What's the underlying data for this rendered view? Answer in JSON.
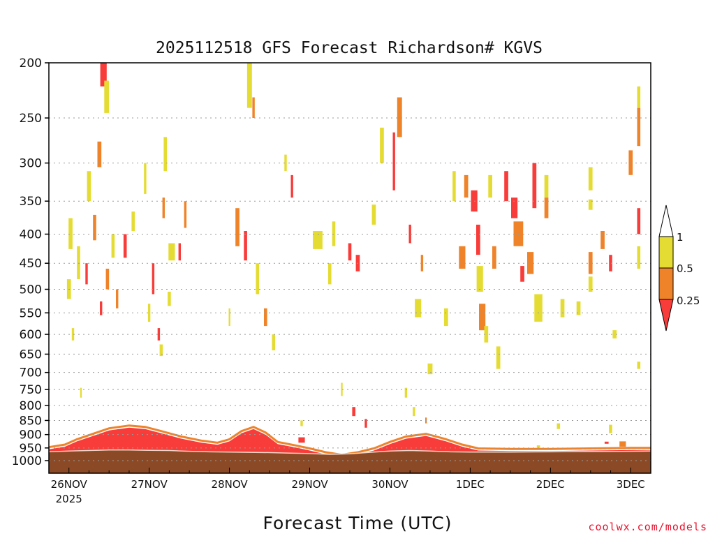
{
  "chart_data": {
    "type": "heatmap",
    "title": "2025112518 GFS Forecast Richardson# KGVS",
    "xlabel": "Forecast Time (UTC)",
    "ylabel": "",
    "y_scale": "log-pressure (inverted)",
    "ylim": [
      1000,
      200
    ],
    "y_ticks": [
      200,
      250,
      300,
      350,
      400,
      450,
      500,
      550,
      600,
      650,
      700,
      750,
      800,
      850,
      900,
      950,
      1000
    ],
    "x_ticks": [
      {
        "label": "26NOV",
        "sub": "2025",
        "day": 26
      },
      {
        "label": "27NOV",
        "sub": "",
        "day": 27
      },
      {
        "label": "28NOV",
        "sub": "",
        "day": 28
      },
      {
        "label": "29NOV",
        "sub": "",
        "day": 29
      },
      {
        "label": "30NOV",
        "sub": "",
        "day": 30
      },
      {
        "label": "1DEC",
        "sub": "",
        "day": 31
      },
      {
        "label": "2DEC",
        "sub": "",
        "day": 32
      },
      {
        "label": "3DEC",
        "sub": "",
        "day": 33
      }
    ],
    "xlim_days": [
      25.75,
      33.25
    ],
    "grid": true,
    "legend": {
      "placement": "right",
      "thresholds": [
        "1",
        "0.5",
        "0.25"
      ],
      "bins": [
        {
          "range": "0.5-1",
          "color": "#e5dc33"
        },
        {
          "range": "0.25-0.5",
          "color": "#ef8329"
        },
        {
          "range": "<0.25",
          "color": "#f83c3a"
        }
      ]
    },
    "colors": {
      "yellow": "#e5dc33",
      "orange": "#ef8329",
      "red": "#f83c3a",
      "ground": "#8b4a25",
      "surface_line": "#f2d6c8"
    },
    "surface_pressure": [
      [
        25.75,
        965
      ],
      [
        26.0,
        962
      ],
      [
        26.25,
        960
      ],
      [
        26.5,
        958
      ],
      [
        26.75,
        958
      ],
      [
        27.0,
        959
      ],
      [
        27.25,
        960
      ],
      [
        27.5,
        963
      ],
      [
        27.75,
        965
      ],
      [
        28.0,
        966
      ],
      [
        28.25,
        967
      ],
      [
        28.5,
        968
      ],
      [
        28.75,
        970
      ],
      [
        29.0,
        972
      ],
      [
        29.25,
        975
      ],
      [
        29.5,
        973
      ],
      [
        29.75,
        967
      ],
      [
        30.0,
        962
      ],
      [
        30.25,
        960
      ],
      [
        30.5,
        962
      ],
      [
        30.75,
        965
      ],
      [
        31.0,
        966
      ],
      [
        31.5,
        966
      ],
      [
        32.0,
        965
      ],
      [
        32.5,
        964
      ],
      [
        33.0,
        963
      ],
      [
        33.25,
        962
      ]
    ],
    "boundary_layer_top": [
      [
        25.75,
        955
      ],
      [
        25.95,
        945
      ],
      [
        26.1,
        925
      ],
      [
        26.3,
        905
      ],
      [
        26.5,
        885
      ],
      [
        26.75,
        875
      ],
      [
        26.95,
        880
      ],
      [
        27.15,
        895
      ],
      [
        27.4,
        915
      ],
      [
        27.65,
        930
      ],
      [
        27.85,
        938
      ],
      [
        28.0,
        925
      ],
      [
        28.15,
        895
      ],
      [
        28.3,
        880
      ],
      [
        28.45,
        900
      ],
      [
        28.6,
        935
      ],
      [
        28.85,
        950
      ],
      [
        29.0,
        960
      ],
      [
        29.2,
        975
      ],
      [
        29.4,
        985
      ],
      [
        29.6,
        975
      ],
      [
        29.8,
        960
      ],
      [
        30.0,
        935
      ],
      [
        30.2,
        915
      ],
      [
        30.45,
        905
      ],
      [
        30.7,
        925
      ],
      [
        30.9,
        945
      ],
      [
        31.1,
        960
      ],
      [
        31.5,
        962
      ],
      [
        32.0,
        962
      ],
      [
        32.5,
        960
      ],
      [
        33.0,
        958
      ],
      [
        33.25,
        958
      ]
    ],
    "cells": [
      {
        "t": 26.43,
        "p": 210,
        "c": "red",
        "w": 0.08,
        "dp": 20
      },
      {
        "t": 26.47,
        "p": 230,
        "c": "yellow",
        "w": 0.06,
        "dp": 30
      },
      {
        "t": 26.38,
        "p": 290,
        "c": "orange",
        "w": 0.05,
        "dp": 30
      },
      {
        "t": 26.25,
        "p": 330,
        "c": "yellow",
        "w": 0.05,
        "dp": 40
      },
      {
        "t": 26.32,
        "p": 390,
        "c": "orange",
        "w": 0.04,
        "dp": 40
      },
      {
        "t": 26.02,
        "p": 400,
        "c": "yellow",
        "w": 0.05,
        "dp": 50
      },
      {
        "t": 26.12,
        "p": 450,
        "c": "yellow",
        "w": 0.04,
        "dp": 60
      },
      {
        "t": 26.22,
        "p": 470,
        "c": "red",
        "w": 0.03,
        "dp": 40
      },
      {
        "t": 26.4,
        "p": 540,
        "c": "red",
        "w": 0.03,
        "dp": 30
      },
      {
        "t": 26.48,
        "p": 480,
        "c": "orange",
        "w": 0.04,
        "dp": 40
      },
      {
        "t": 26.55,
        "p": 420,
        "c": "yellow",
        "w": 0.04,
        "dp": 40
      },
      {
        "t": 26.7,
        "p": 420,
        "c": "red",
        "w": 0.04,
        "dp": 40
      },
      {
        "t": 26.8,
        "p": 380,
        "c": "yellow",
        "w": 0.04,
        "dp": 30
      },
      {
        "t": 26.95,
        "p": 320,
        "c": "yellow",
        "w": 0.03,
        "dp": 40
      },
      {
        "t": 27.05,
        "p": 480,
        "c": "red",
        "w": 0.03,
        "dp": 60
      },
      {
        "t": 27.12,
        "p": 600,
        "c": "red",
        "w": 0.03,
        "dp": 30
      },
      {
        "t": 27.15,
        "p": 640,
        "c": "yellow",
        "w": 0.04,
        "dp": 30
      },
      {
        "t": 27.2,
        "p": 290,
        "c": "yellow",
        "w": 0.04,
        "dp": 40
      },
      {
        "t": 27.18,
        "p": 360,
        "c": "orange",
        "w": 0.03,
        "dp": 30
      },
      {
        "t": 27.28,
        "p": 430,
        "c": "yellow",
        "w": 0.08,
        "dp": 30
      },
      {
        "t": 27.38,
        "p": 430,
        "c": "red",
        "w": 0.03,
        "dp": 30
      },
      {
        "t": 27.45,
        "p": 370,
        "c": "orange",
        "w": 0.03,
        "dp": 40
      },
      {
        "t": 28.1,
        "p": 390,
        "c": "orange",
        "w": 0.05,
        "dp": 60
      },
      {
        "t": 28.2,
        "p": 420,
        "c": "red",
        "w": 0.04,
        "dp": 50
      },
      {
        "t": 28.25,
        "p": 220,
        "c": "yellow",
        "w": 0.06,
        "dp": 40
      },
      {
        "t": 28.3,
        "p": 240,
        "c": "orange",
        "w": 0.03,
        "dp": 20
      },
      {
        "t": 28.35,
        "p": 480,
        "c": "yellow",
        "w": 0.04,
        "dp": 60
      },
      {
        "t": 28.45,
        "p": 560,
        "c": "orange",
        "w": 0.04,
        "dp": 40
      },
      {
        "t": 28.55,
        "p": 620,
        "c": "yellow",
        "w": 0.04,
        "dp": 40
      },
      {
        "t": 28.7,
        "p": 300,
        "c": "yellow",
        "w": 0.03,
        "dp": 20
      },
      {
        "t": 28.78,
        "p": 330,
        "c": "red",
        "w": 0.03,
        "dp": 30
      },
      {
        "t": 29.1,
        "p": 410,
        "c": "yellow",
        "w": 0.12,
        "dp": 30
      },
      {
        "t": 29.3,
        "p": 400,
        "c": "yellow",
        "w": 0.04,
        "dp": 40
      },
      {
        "t": 29.5,
        "p": 430,
        "c": "red",
        "w": 0.04,
        "dp": 30
      },
      {
        "t": 29.6,
        "p": 450,
        "c": "red",
        "w": 0.05,
        "dp": 30
      },
      {
        "t": 29.8,
        "p": 370,
        "c": "yellow",
        "w": 0.05,
        "dp": 30
      },
      {
        "t": 29.9,
        "p": 280,
        "c": "yellow",
        "w": 0.05,
        "dp": 40
      },
      {
        "t": 30.05,
        "p": 300,
        "c": "red",
        "w": 0.03,
        "dp": 70
      },
      {
        "t": 30.12,
        "p": 250,
        "c": "orange",
        "w": 0.06,
        "dp": 40
      },
      {
        "t": 30.25,
        "p": 400,
        "c": "red",
        "w": 0.03,
        "dp": 30
      },
      {
        "t": 30.35,
        "p": 540,
        "c": "yellow",
        "w": 0.08,
        "dp": 40
      },
      {
        "t": 30.4,
        "p": 450,
        "c": "orange",
        "w": 0.03,
        "dp": 30
      },
      {
        "t": 30.5,
        "p": 690,
        "c": "yellow",
        "w": 0.06,
        "dp": 30
      },
      {
        "t": 30.7,
        "p": 560,
        "c": "yellow",
        "w": 0.05,
        "dp": 40
      },
      {
        "t": 30.8,
        "p": 330,
        "c": "yellow",
        "w": 0.04,
        "dp": 40
      },
      {
        "t": 30.9,
        "p": 440,
        "c": "orange",
        "w": 0.08,
        "dp": 40
      },
      {
        "t": 30.95,
        "p": 330,
        "c": "orange",
        "w": 0.05,
        "dp": 30
      },
      {
        "t": 31.05,
        "p": 350,
        "c": "red",
        "w": 0.08,
        "dp": 30
      },
      {
        "t": 31.1,
        "p": 410,
        "c": "red",
        "w": 0.05,
        "dp": 50
      },
      {
        "t": 31.12,
        "p": 480,
        "c": "yellow",
        "w": 0.08,
        "dp": 50
      },
      {
        "t": 31.15,
        "p": 560,
        "c": "orange",
        "w": 0.08,
        "dp": 60
      },
      {
        "t": 31.2,
        "p": 600,
        "c": "yellow",
        "w": 0.05,
        "dp": 40
      },
      {
        "t": 31.25,
        "p": 330,
        "c": "yellow",
        "w": 0.05,
        "dp": 30
      },
      {
        "t": 31.3,
        "p": 440,
        "c": "orange",
        "w": 0.05,
        "dp": 40
      },
      {
        "t": 31.35,
        "p": 660,
        "c": "yellow",
        "w": 0.05,
        "dp": 60
      },
      {
        "t": 31.45,
        "p": 330,
        "c": "red",
        "w": 0.05,
        "dp": 40
      },
      {
        "t": 31.55,
        "p": 360,
        "c": "red",
        "w": 0.08,
        "dp": 30
      },
      {
        "t": 31.6,
        "p": 400,
        "c": "orange",
        "w": 0.12,
        "dp": 40
      },
      {
        "t": 31.65,
        "p": 470,
        "c": "red",
        "w": 0.05,
        "dp": 30
      },
      {
        "t": 31.75,
        "p": 450,
        "c": "orange",
        "w": 0.08,
        "dp": 40
      },
      {
        "t": 31.8,
        "p": 330,
        "c": "red",
        "w": 0.05,
        "dp": 60
      },
      {
        "t": 31.85,
        "p": 540,
        "c": "yellow",
        "w": 0.1,
        "dp": 60
      },
      {
        "t": 31.95,
        "p": 330,
        "c": "yellow",
        "w": 0.05,
        "dp": 30
      },
      {
        "t": 31.95,
        "p": 360,
        "c": "orange",
        "w": 0.05,
        "dp": 30
      },
      {
        "t": 32.15,
        "p": 540,
        "c": "yellow",
        "w": 0.05,
        "dp": 40
      },
      {
        "t": 32.35,
        "p": 540,
        "c": "yellow",
        "w": 0.05,
        "dp": 30
      },
      {
        "t": 32.5,
        "p": 320,
        "c": "yellow",
        "w": 0.05,
        "dp": 30
      },
      {
        "t": 32.5,
        "p": 355,
        "c": "yellow",
        "w": 0.05,
        "dp": 15
      },
      {
        "t": 32.5,
        "p": 450,
        "c": "orange",
        "w": 0.05,
        "dp": 40
      },
      {
        "t": 32.5,
        "p": 490,
        "c": "yellow",
        "w": 0.05,
        "dp": 30
      },
      {
        "t": 32.65,
        "p": 410,
        "c": "orange",
        "w": 0.05,
        "dp": 30
      },
      {
        "t": 32.75,
        "p": 450,
        "c": "red",
        "w": 0.04,
        "dp": 30
      },
      {
        "t": 32.8,
        "p": 600,
        "c": "yellow",
        "w": 0.05,
        "dp": 20
      },
      {
        "t": 33.0,
        "p": 300,
        "c": "orange",
        "w": 0.05,
        "dp": 30
      },
      {
        "t": 33.1,
        "p": 260,
        "c": "orange",
        "w": 0.04,
        "dp": 40
      },
      {
        "t": 33.1,
        "p": 230,
        "c": "yellow",
        "w": 0.04,
        "dp": 20
      },
      {
        "t": 33.1,
        "p": 380,
        "c": "red",
        "w": 0.04,
        "dp": 40
      },
      {
        "t": 33.1,
        "p": 440,
        "c": "yellow",
        "w": 0.04,
        "dp": 40
      },
      {
        "t": 33.1,
        "p": 680,
        "c": "yellow",
        "w": 0.04,
        "dp": 20
      },
      {
        "t": 26.0,
        "p": 500,
        "c": "yellow",
        "w": 0.05,
        "dp": 40
      },
      {
        "t": 26.05,
        "p": 600,
        "c": "yellow",
        "w": 0.03,
        "dp": 30
      },
      {
        "t": 26.15,
        "p": 760,
        "c": "yellow",
        "w": 0.02,
        "dp": 30
      },
      {
        "t": 26.6,
        "p": 520,
        "c": "orange",
        "w": 0.03,
        "dp": 40
      },
      {
        "t": 27.0,
        "p": 550,
        "c": "yellow",
        "w": 0.03,
        "dp": 40
      },
      {
        "t": 27.25,
        "p": 520,
        "c": "yellow",
        "w": 0.04,
        "dp": 30
      },
      {
        "t": 28.0,
        "p": 560,
        "c": "yellow",
        "w": 0.02,
        "dp": 40
      },
      {
        "t": 29.25,
        "p": 470,
        "c": "yellow",
        "w": 0.04,
        "dp": 40
      },
      {
        "t": 29.4,
        "p": 750,
        "c": "yellow",
        "w": 0.02,
        "dp": 40
      },
      {
        "t": 29.55,
        "p": 820,
        "c": "red",
        "w": 0.04,
        "dp": 30
      },
      {
        "t": 29.7,
        "p": 860,
        "c": "red",
        "w": 0.03,
        "dp": 30
      },
      {
        "t": 30.2,
        "p": 760,
        "c": "yellow",
        "w": 0.03,
        "dp": 30
      },
      {
        "t": 30.3,
        "p": 820,
        "c": "yellow",
        "w": 0.03,
        "dp": 30
      },
      {
        "t": 30.45,
        "p": 850,
        "c": "orange",
        "w": 0.02,
        "dp": 20
      },
      {
        "t": 28.9,
        "p": 920,
        "c": "red",
        "w": 0.08,
        "dp": 20
      },
      {
        "t": 28.9,
        "p": 860,
        "c": "yellow",
        "w": 0.03,
        "dp": 20
      },
      {
        "t": 32.1,
        "p": 870,
        "c": "yellow",
        "w": 0.04,
        "dp": 20
      },
      {
        "t": 32.75,
        "p": 880,
        "c": "yellow",
        "w": 0.04,
        "dp": 30
      },
      {
        "t": 32.9,
        "p": 935,
        "c": "orange",
        "w": 0.08,
        "dp": 20
      },
      {
        "t": 32.7,
        "p": 930,
        "c": "red",
        "w": 0.05,
        "dp": 8
      },
      {
        "t": 31.85,
        "p": 945,
        "c": "yellow",
        "w": 0.04,
        "dp": 10
      }
    ]
  },
  "credit": "coolwx.com/models"
}
